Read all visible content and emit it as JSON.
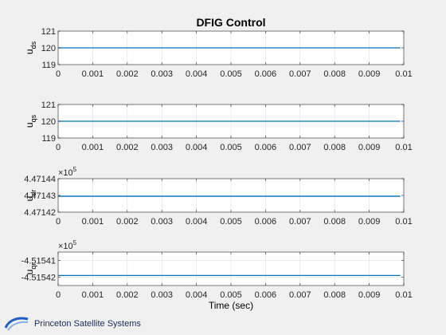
{
  "chart_data": {
    "type": "line",
    "title": "DFIG Control",
    "xlabel": "Time (sec)",
    "xlim": [
      0,
      0.01
    ],
    "x_ticks": [
      "0",
      "0.001",
      "0.002",
      "0.003",
      "0.004",
      "0.005",
      "0.006",
      "0.007",
      "0.008",
      "0.009",
      "0.01"
    ],
    "grid": true,
    "line_color": "#0072bd",
    "subplots": [
      {
        "ylabel": "u",
        "ylabel_sub": "ds",
        "ylim": [
          119,
          121
        ],
        "y_ticks": [
          "119",
          "120",
          "121"
        ],
        "exponent_label": "",
        "x": [
          0,
          0.0099
        ],
        "y": [
          120,
          120
        ]
      },
      {
        "ylabel": "u",
        "ylabel_sub": "qs",
        "ylim": [
          119,
          121
        ],
        "y_ticks": [
          "119",
          "120",
          "121"
        ],
        "exponent_label": "",
        "x": [
          0,
          0.0099
        ],
        "y": [
          120,
          120
        ]
      },
      {
        "ylabel": "u",
        "ylabel_sub": "dr",
        "ylim": [
          447142,
          447144
        ],
        "y_ticks": [
          "4.47142",
          "4.47143",
          "4.47144"
        ],
        "exponent_label": "×10",
        "exponent_power": "5",
        "x": [
          0,
          0.0099
        ],
        "y": [
          447142.95,
          447142.95
        ]
      },
      {
        "ylabel": "u",
        "ylabel_sub": "qr",
        "ylim": [
          -451542.5,
          -451540.5
        ],
        "y_ticks": [
          "-4.51542",
          "-4.51541"
        ],
        "y_tick_values": [
          -451542,
          -451541
        ],
        "exponent_label": "×10",
        "exponent_power": "5",
        "x": [
          0,
          0.0099
        ],
        "y": [
          -451541.9,
          -451541.9
        ]
      }
    ]
  },
  "footer": {
    "company_name": "Princeton Satellite Systems"
  }
}
